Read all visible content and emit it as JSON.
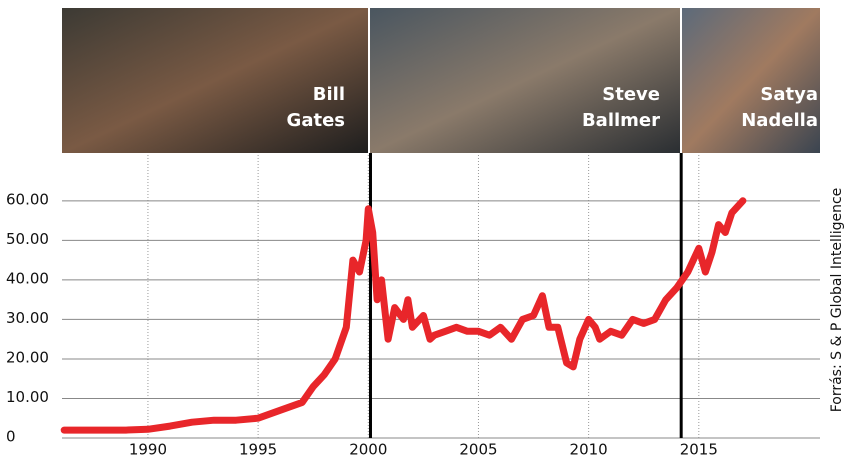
{
  "chart_data": {
    "type": "line",
    "panels": [
      {
        "lines": [
          "Bill",
          "Gates"
        ]
      },
      {
        "lines": [
          "Steve",
          "Ballmer"
        ]
      },
      {
        "lines": [
          "Satya",
          "Nadella"
        ]
      }
    ],
    "source": "Forrás: S & P Global Intelligence",
    "ceo_changes": [
      2000.1,
      2014.2
    ],
    "x": [
      1986.2,
      1988,
      1989,
      1990,
      1991,
      1992,
      1993,
      1994,
      1995,
      1996,
      1997,
      1997.5,
      1998,
      1998.5,
      1999,
      1999.3,
      1999.6,
      1999.9,
      2000,
      2000.2,
      2000.4,
      2000.6,
      2000.9,
      2001.2,
      2001.6,
      2001.8,
      2002,
      2002.5,
      2002.8,
      2003,
      2003.5,
      2004,
      2004.5,
      2005,
      2005.5,
      2006,
      2006.5,
      2007,
      2007.5,
      2007.9,
      2008.2,
      2008.6,
      2009,
      2009.3,
      2009.6,
      2010,
      2010.3,
      2010.5,
      2011,
      2011.5,
      2012,
      2012.5,
      2013,
      2013.5,
      2014,
      2014.5,
      2015,
      2015.3,
      2015.6,
      2015.9,
      2016.2,
      2016.5,
      2017
    ],
    "series": [
      {
        "color": "#e8262a",
        "values": [
          2,
          2,
          2,
          2.2,
          3,
          4,
          4.5,
          4.5,
          5,
          7,
          9,
          13,
          16,
          20,
          28,
          45,
          42,
          50,
          58,
          52,
          35,
          40,
          25,
          33,
          30,
          35,
          28,
          31,
          25,
          26,
          27,
          28,
          27,
          27,
          26,
          28,
          25,
          30,
          31,
          36,
          28,
          28,
          19,
          18,
          25,
          30,
          28,
          25,
          27,
          26,
          30,
          29,
          30,
          35,
          38,
          42,
          48,
          42,
          47,
          54,
          52,
          57,
          60
        ]
      }
    ],
    "xlim": [
      1986.1,
      2020.5
    ],
    "xticks": [
      1990,
      1995,
      2000,
      2005,
      2010,
      2015
    ],
    "ylim": [
      0,
      71.6
    ],
    "yticks": [
      0,
      {
        "value": 10,
        "label": "10.00"
      },
      {
        "value": 20,
        "label": "20.00"
      },
      {
        "value": 30,
        "label": "30.00"
      },
      {
        "value": 40,
        "label": "40.00"
      },
      {
        "value": 50,
        "label": "50.00"
      },
      {
        "value": 60,
        "label": "60.00"
      }
    ],
    "grid": true
  }
}
